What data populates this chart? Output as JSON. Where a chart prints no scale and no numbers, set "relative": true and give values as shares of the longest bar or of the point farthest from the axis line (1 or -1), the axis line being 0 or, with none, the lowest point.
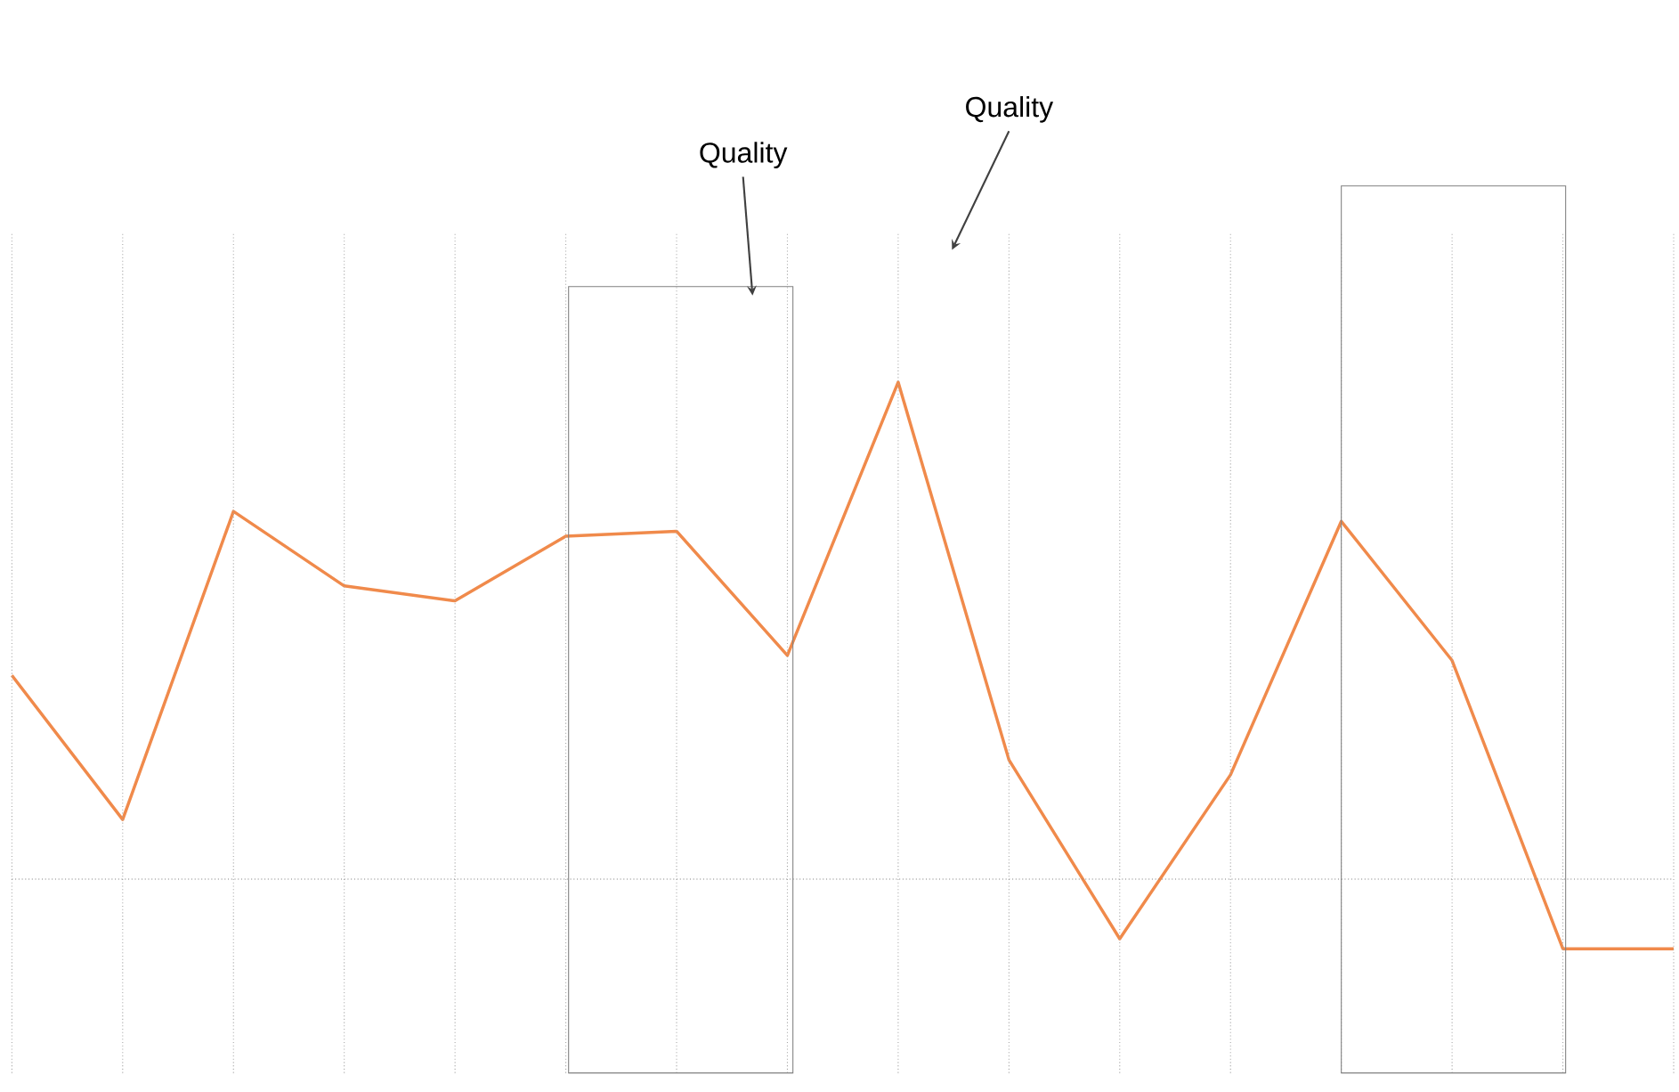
{
  "chart_data": {
    "type": "line",
    "relative": true,
    "grid": "x",
    "categories": [
      null,
      null,
      null,
      null,
      null,
      null,
      null,
      null,
      null,
      null,
      null,
      null,
      null,
      null,
      null,
      null
    ],
    "series": [
      {
        "color": "#f08a4b",
        "line_style": "solid",
        "values": [
          0.41,
          0.12,
          0.74,
          0.59,
          0.56,
          0.69,
          0.7,
          0.45,
          1,
          0.24,
          -0.12,
          0.21,
          0.72,
          0.44,
          -0.14,
          -0.14
        ]
      }
    ],
    "ref_lines": [
      {
        "axis": "y",
        "value": 0,
        "color": "#808080",
        "line_style": "dotted"
      }
    ],
    "annotations": [
      "Quality",
      "Quality"
    ]
  }
}
